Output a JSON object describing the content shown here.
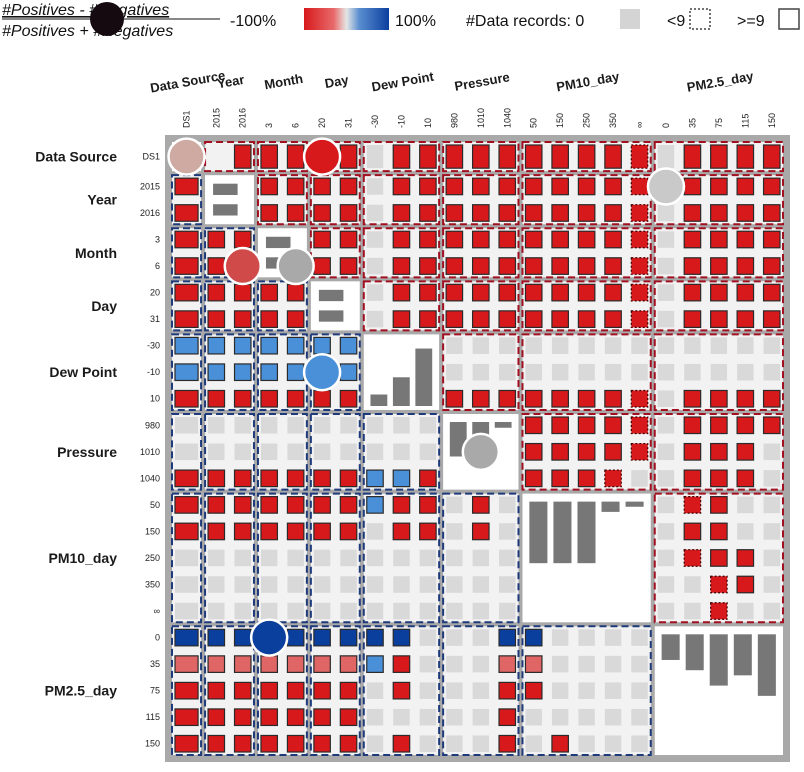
{
  "legend": {
    "formula_numerator": "#Positives - #Negatives",
    "formula_denominator": "#Positives + #Negatives",
    "scale_min_label": "-100%",
    "scale_max_label": "100%",
    "records_label": "#Data records: 0",
    "lt_label": "<9",
    "ge_label": ">=9"
  },
  "colors": {
    "negative_strong": "#d7191c",
    "positive_strong": "#0b3f9e",
    "positive_medium": "#4a90d9",
    "neutral_gray": "#d9d9d9",
    "histogram_gray": "#777777",
    "outline_red": "#a01020",
    "outline_blue": "#1f3a7a"
  },
  "chart_data": {
    "type": "heatmap",
    "attributes": [
      {
        "name": "Data Source",
        "bins": [
          "DS1"
        ]
      },
      {
        "name": "Year",
        "bins": [
          "2015",
          "2016"
        ]
      },
      {
        "name": "Month",
        "bins": [
          "3",
          "6"
        ]
      },
      {
        "name": "Day",
        "bins": [
          "20",
          "31"
        ]
      },
      {
        "name": "Dew Point",
        "bins": [
          "-30",
          "-10",
          "10"
        ]
      },
      {
        "name": "Pressure",
        "bins": [
          "980",
          "1010",
          "1040"
        ]
      },
      {
        "name": "PM10_day",
        "bins": [
          "50",
          "150",
          "250",
          "350",
          "∞"
        ]
      },
      {
        "name": "PM2.5_day",
        "bins": [
          "0",
          "35",
          "75",
          "115",
          "150"
        ]
      }
    ],
    "col_labels": [
      "DS1",
      "2015",
      "2016",
      "3",
      "6",
      "20",
      "31",
      "-30",
      "-10",
      "10",
      "980",
      "1010",
      "1040",
      "50",
      "150",
      "250",
      "350",
      "∞",
      "0",
      "35",
      "75",
      "115",
      "150"
    ],
    "row_labels": [
      "DS1",
      "2015",
      "2016",
      "3",
      "6",
      "20",
      "31",
      "-30",
      "-10",
      "10",
      "980",
      "1010",
      "1040",
      "50",
      "150",
      "250",
      "350",
      "∞",
      "0",
      "35",
      "75",
      "115",
      "150"
    ],
    "value_scale": [
      -100,
      100
    ],
    "cells": [
      "N N R R R R R L R R R R R R R R R F L R R R R",
      "R N N R R R R L R R R R R R R R R F L R R R R",
      "R N N R R R R L R R R R R R R R R F L R R R R",
      "R R R N N R R L R R R R R R R R R F L R R R R",
      "R R R N N R R L R R R R R R R R R F L R R R R",
      "R R R R R N N L R R R R R R R R R F L R R R R",
      "R R R R R N N L R R R R R R R R R F L R R R R",
      "B B B B B B B N N N L L L L L L L L L L L L L",
      "B B B B B B B N N N L L L L L L L L L L L L L",
      "R R R R R R R N N N R R R R R R R F L R R R R",
      "L L L L L L L L L L N N N R R R R F L R R R R",
      "L L L L L L L L L L N N N R R R R F L R R R L",
      "R R R R R R R B B R N N N R R R F L L R R R L",
      "R R R R R R R B R R L R L N N N N N L F R L L",
      "R R R R R R R L R R L R L N N N N N L R R L L",
      "L L L L L L L L L L L L L N N N N N L F R R L",
      "L L L L L L L L L L L L L N N N N N L L F R L",
      "L L L L L L L L L L L L L N N N N N L L F L L",
      "D D D D D D D D D L L L D D L L L L N N N N N",
      "P P P P P P P B R L L L P P L L L L N N N N N",
      "R R R R R R R L R L L L R R L L L L N N N N N",
      "R R R R R R R L L L L L R L L L L L N N N N N",
      "R R R R R R R L R L L L R L R L L L N N N N N"
    ],
    "cell_codes": {
      "R": "negative, about -100%",
      "F": "negative, about -100%, fewer than 9 records",
      "P": "negative, about -60%",
      "B": "positive, about +60%",
      "D": "positive, about +100%",
      "L": "no data records",
      "N": "same-attribute block (histogram)"
    },
    "circles": [
      {
        "row": 0,
        "col": 0,
        "value": -25
      },
      {
        "row": 0,
        "col": 5,
        "value": -100
      },
      {
        "row": 4,
        "col": 2,
        "value": -90
      },
      {
        "row": 4,
        "col": 4,
        "value": 0
      },
      {
        "row": 8,
        "col": 5,
        "value": 70
      },
      {
        "row": 1,
        "col": 18,
        "value": 0
      },
      {
        "row": 11,
        "col": 11,
        "value": 0
      },
      {
        "row": 18,
        "col": 3,
        "value": 100
      }
    ],
    "histograms": [
      {
        "attribute": "Data Source",
        "counts": [
          1
        ]
      },
      {
        "attribute": "Year",
        "counts": [
          1,
          1
        ]
      },
      {
        "attribute": "Month",
        "counts": [
          1,
          1
        ]
      },
      {
        "attribute": "Day",
        "counts": [
          1,
          1
        ]
      },
      {
        "attribute": "Dew Point",
        "counts": [
          0.2,
          0.5,
          1
        ]
      },
      {
        "attribute": "Pressure",
        "counts": [
          0.6,
          0.5,
          0.1
        ]
      },
      {
        "attribute": "PM10_day",
        "counts": [
          0.6,
          0.6,
          0.6,
          0.1,
          0.05
        ]
      },
      {
        "attribute": "PM2.5_day",
        "counts": [
          0.25,
          0.35,
          0.5,
          0.4,
          0.6
        ]
      }
    ]
  }
}
